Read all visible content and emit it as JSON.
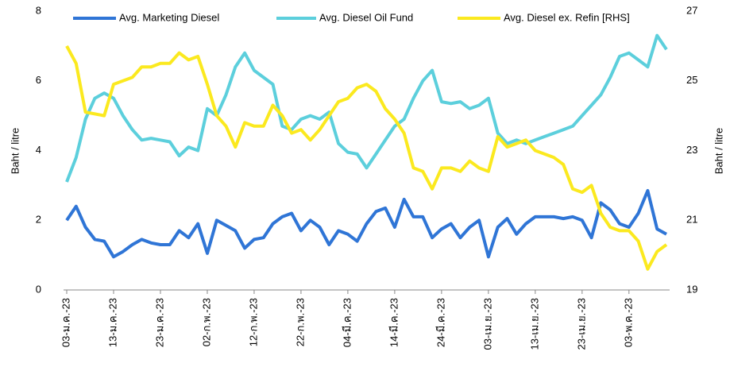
{
  "chart_data": {
    "type": "line",
    "y_label": "Baht / litre",
    "y2_label": "Baht / litre",
    "categories": [
      "03-ม.ค.-23",
      null,
      null,
      null,
      null,
      "13-ม.ค.-23",
      null,
      null,
      null,
      null,
      "23-ม.ค.-23",
      null,
      null,
      null,
      null,
      "02-ก.พ.-23",
      null,
      null,
      null,
      null,
      "12-ก.พ.-23",
      null,
      null,
      null,
      null,
      "22-ก.พ.-23",
      null,
      null,
      null,
      null,
      "04-มี.ค.-23",
      null,
      null,
      null,
      null,
      "14-มี.ค.-23",
      null,
      null,
      null,
      null,
      "24-มี.ค.-23",
      null,
      null,
      null,
      null,
      "03-เม.ย.-23",
      null,
      null,
      null,
      null,
      "13-เม.ย.-23",
      null,
      null,
      null,
      null,
      "23-เม.ย.-23",
      null,
      null,
      null,
      null,
      "03-พ.ค.-23",
      null,
      null,
      null,
      null
    ],
    "series": [
      {
        "name": "Avg. Marketing Diesel",
        "color": "#2f75d6",
        "axis": "y",
        "values": [
          2.0,
          2.4,
          1.8,
          1.45,
          1.4,
          0.95,
          1.1,
          1.3,
          1.45,
          1.35,
          1.3,
          1.3,
          1.7,
          1.5,
          1.9,
          1.05,
          2.0,
          1.85,
          1.7,
          1.2,
          1.45,
          1.5,
          1.9,
          2.1,
          2.2,
          1.7,
          2.0,
          1.8,
          1.3,
          1.7,
          1.6,
          1.4,
          1.9,
          2.25,
          2.35,
          1.8,
          2.6,
          2.1,
          2.1,
          1.5,
          1.75,
          1.9,
          1.5,
          1.8,
          2.0,
          0.95,
          1.8,
          2.05,
          1.6,
          1.9,
          2.1,
          2.1,
          2.1,
          2.05,
          2.1,
          2.0,
          1.5,
          2.5,
          2.3,
          1.9,
          1.8,
          2.2,
          2.85,
          1.75,
          1.6
        ]
      },
      {
        "name": "Avg. Diesel Oil Fund",
        "color": "#5ccfdc",
        "axis": "y",
        "values": [
          3.1,
          3.8,
          4.9,
          5.5,
          5.65,
          5.5,
          5.0,
          4.6,
          4.3,
          4.35,
          4.3,
          4.25,
          3.85,
          4.1,
          4.0,
          5.2,
          5.0,
          5.6,
          6.4,
          6.8,
          6.3,
          6.1,
          5.9,
          4.7,
          4.6,
          4.9,
          5.0,
          4.9,
          5.1,
          4.2,
          3.95,
          3.9,
          3.5,
          3.9,
          4.3,
          4.7,
          4.9,
          5.5,
          6.0,
          6.3,
          5.4,
          5.35,
          5.4,
          5.2,
          5.3,
          5.5,
          4.5,
          4.2,
          4.3,
          4.2,
          4.3,
          4.4,
          4.5,
          4.6,
          4.7,
          5.0,
          5.3,
          5.6,
          6.1,
          6.7,
          6.8,
          6.6,
          6.4,
          7.3,
          6.9
        ]
      },
      {
        "name": "Avg. Diesel ex. Refin [RHS]",
        "color": "#fbe91f",
        "axis": "y2",
        "values": [
          26.0,
          25.5,
          24.1,
          24.05,
          24.0,
          24.9,
          25.0,
          25.1,
          25.4,
          25.4,
          25.5,
          25.5,
          25.8,
          25.6,
          25.7,
          24.9,
          24.0,
          23.7,
          23.1,
          23.8,
          23.7,
          23.7,
          24.3,
          24.0,
          23.5,
          23.6,
          23.3,
          23.6,
          24.0,
          24.4,
          24.5,
          24.8,
          24.9,
          24.7,
          24.2,
          23.9,
          23.5,
          22.5,
          22.4,
          21.9,
          22.5,
          22.5,
          22.4,
          22.7,
          22.5,
          22.4,
          23.4,
          23.1,
          23.2,
          23.3,
          23.0,
          22.9,
          22.8,
          22.6,
          21.9,
          21.8,
          22.0,
          21.2,
          20.8,
          20.7,
          20.7,
          20.4,
          19.6,
          20.1,
          20.3
        ]
      }
    ],
    "ylim": [
      0,
      8
    ],
    "yticks": [
      0,
      2,
      4,
      6,
      8
    ],
    "y2lim": [
      19,
      27
    ],
    "y2ticks": [
      19,
      21,
      23,
      25,
      27
    ],
    "legend": "top"
  }
}
